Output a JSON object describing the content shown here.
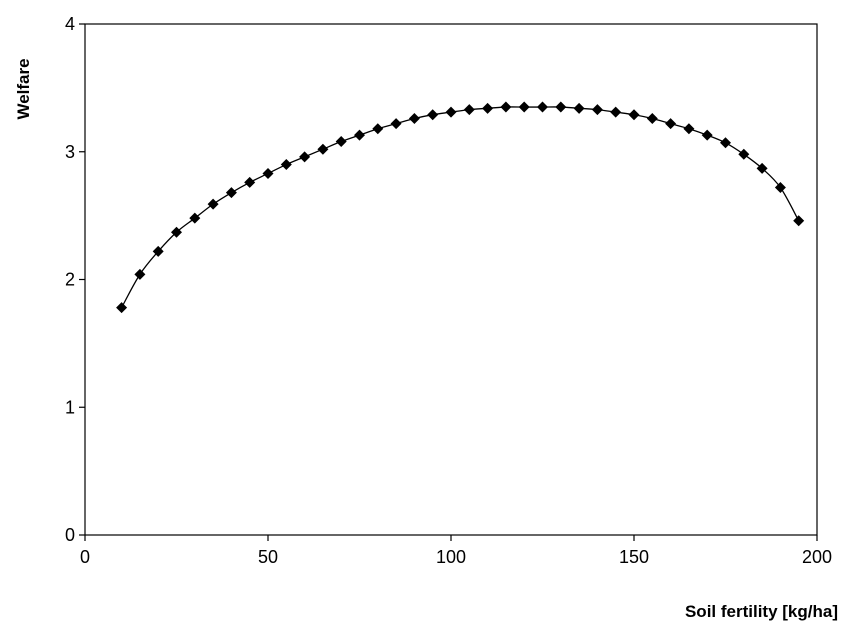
{
  "chart_data": {
    "type": "line",
    "title": "",
    "xlabel": "Soil fertility [kg/ha]",
    "ylabel": "Welfare",
    "xlim": [
      0,
      200
    ],
    "ylim": [
      0,
      4
    ],
    "x_ticks": [
      "0",
      "50",
      "100",
      "150",
      "200"
    ],
    "y_ticks": [
      "0",
      "1",
      "2",
      "3",
      "4"
    ],
    "grid": false,
    "legend": "none",
    "marker": "diamond",
    "line_color": "#000000",
    "series": [
      {
        "x": [
          10,
          15,
          20,
          25,
          30,
          35,
          40,
          45,
          50,
          55,
          60,
          65,
          70,
          75,
          80,
          85,
          90,
          95,
          100,
          105,
          110,
          115,
          120,
          125,
          130,
          135,
          140,
          145,
          150,
          155,
          160,
          165,
          170,
          175,
          180,
          185,
          190,
          195
        ],
        "values": [
          1.78,
          2.04,
          2.22,
          2.37,
          2.48,
          2.59,
          2.68,
          2.76,
          2.83,
          2.9,
          2.96,
          3.02,
          3.08,
          3.13,
          3.18,
          3.22,
          3.26,
          3.29,
          3.31,
          3.33,
          3.34,
          3.35,
          3.35,
          3.35,
          3.35,
          3.34,
          3.33,
          3.31,
          3.29,
          3.26,
          3.22,
          3.18,
          3.13,
          3.07,
          2.98,
          2.87,
          2.72,
          2.46
        ]
      }
    ]
  }
}
